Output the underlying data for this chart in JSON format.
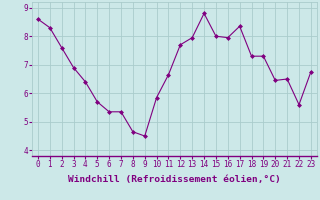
{
  "x": [
    0,
    1,
    2,
    3,
    4,
    5,
    6,
    7,
    8,
    9,
    10,
    11,
    12,
    13,
    14,
    15,
    16,
    17,
    18,
    19,
    20,
    21,
    22,
    23
  ],
  "y": [
    8.6,
    8.3,
    7.6,
    6.9,
    6.4,
    5.7,
    5.35,
    5.35,
    4.65,
    4.5,
    5.85,
    6.65,
    7.7,
    7.95,
    8.8,
    8.0,
    7.95,
    8.35,
    7.3,
    7.3,
    6.45,
    6.5,
    5.6,
    6.75
  ],
  "xlim": [
    -0.5,
    23.5
  ],
  "ylim": [
    3.8,
    9.2
  ],
  "yticks": [
    4,
    5,
    6,
    7,
    8,
    9
  ],
  "xticks": [
    0,
    1,
    2,
    3,
    4,
    5,
    6,
    7,
    8,
    9,
    10,
    11,
    12,
    13,
    14,
    15,
    16,
    17,
    18,
    19,
    20,
    21,
    22,
    23
  ],
  "xlabel": "Windchill (Refroidissement éolien,°C)",
  "line_color": "#800080",
  "marker": "D",
  "marker_size": 2.0,
  "line_width": 0.8,
  "bg_color": "#cce8e8",
  "grid_color": "#aacccc",
  "tick_color": "#800080",
  "label_color": "#800080",
  "tick_fontsize": 5.5,
  "xlabel_fontsize": 6.8
}
